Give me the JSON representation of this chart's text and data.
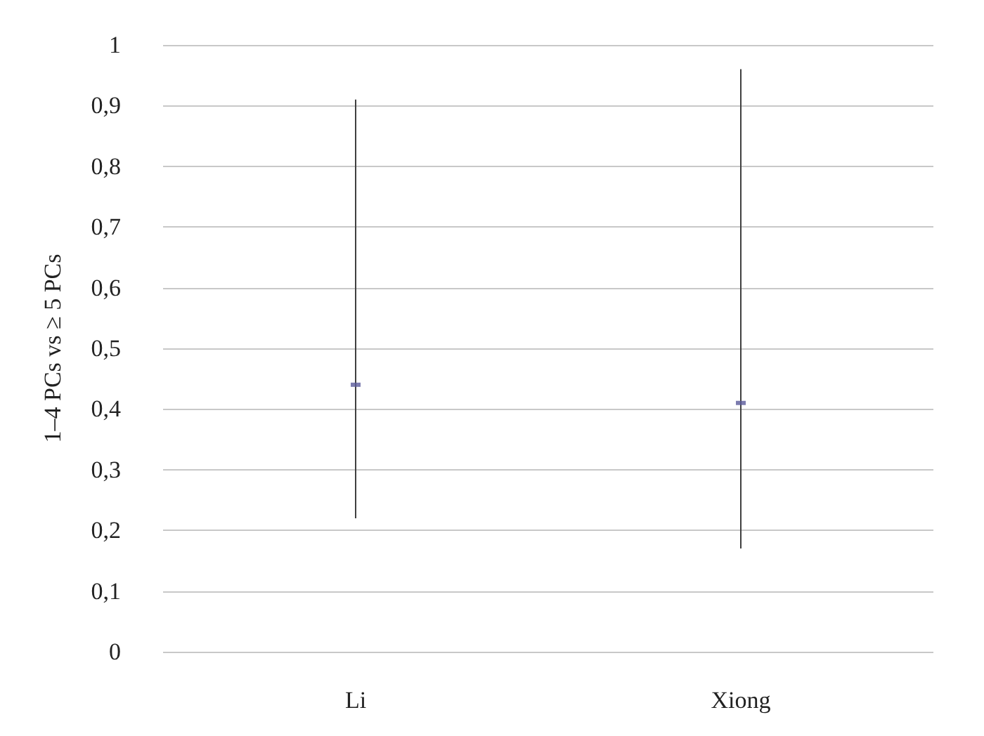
{
  "chart_data": {
    "type": "scatter",
    "ylabel": "1–4 PCs vs ≥ 5 PCs",
    "categories": [
      "Li",
      "Xiong"
    ],
    "series": [
      {
        "color": "#5b5b9b",
        "values": [
          0.44,
          0.41
        ],
        "errors": [
          [
            0.22,
            0.91
          ],
          [
            0.17,
            0.96
          ]
        ]
      }
    ],
    "ylim": [
      0,
      1
    ],
    "yticks": [
      0,
      {
        "value": 0.1,
        "label": "0,1"
      },
      {
        "value": 0.2,
        "label": "0,2"
      },
      {
        "value": 0.3,
        "label": "0,3"
      },
      {
        "value": 0.4,
        "label": "0,4"
      },
      {
        "value": 0.5,
        "label": "0,5"
      },
      {
        "value": 0.6,
        "label": "0,6"
      },
      {
        "value": 0.7,
        "label": "0,7"
      },
      {
        "value": 0.8,
        "label": "0,8"
      },
      {
        "value": 0.9,
        "label": "0,9"
      },
      1
    ],
    "grid": "y",
    "marker": "square"
  }
}
